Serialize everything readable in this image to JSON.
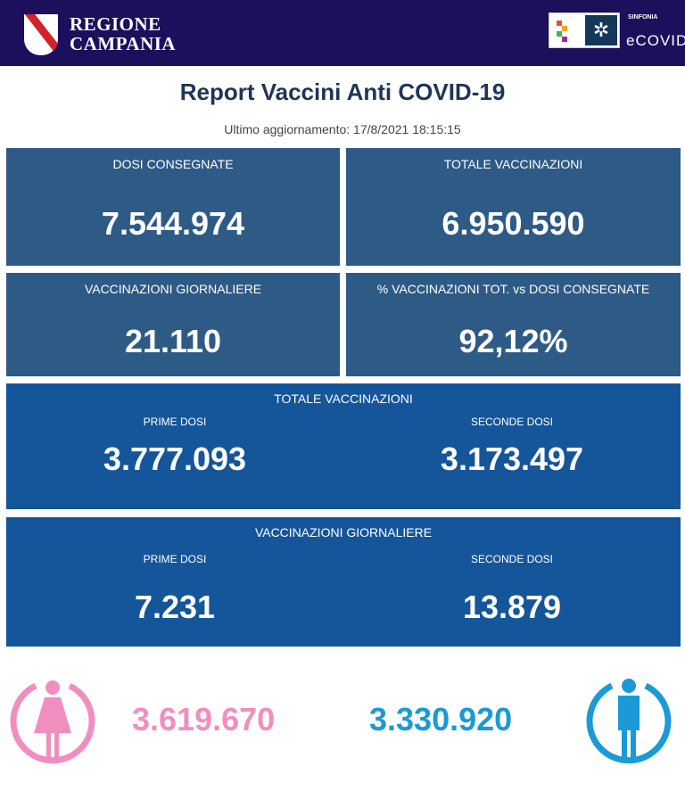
{
  "header": {
    "brand_line1": "REGIONE",
    "brand_line2": "CAMPANIA",
    "partner_small": "SINFONIA",
    "partner_name": "eCOVID"
  },
  "title": "Report Vaccini Anti COVID-19",
  "updated": "Ultimo aggiornamento: 17/8/2021  18:15:15",
  "cards": [
    {
      "label": "DOSI  CONSEGNATE",
      "value": "7.544.974"
    },
    {
      "label": "TOTALE VACCINAZIONI",
      "value": "6.950.590"
    },
    {
      "label": "VACCINAZIONI GIORNALIERE",
      "value": "21.110"
    },
    {
      "label": "% VACCINAZIONI TOT. vs DOSI CONSEGNATE",
      "value": "92,12%"
    }
  ],
  "totale": {
    "label": "TOTALE VACCINAZIONI",
    "prime_label": "PRIME DOSI",
    "prime": "3.777.093",
    "seconde_label": "SECONDE DOSI",
    "seconde": "3.173.497"
  },
  "giornaliere": {
    "label": "VACCINAZIONI GIORNALIERE",
    "prime_label": "PRIME DOSI",
    "prime": "7.231",
    "seconde_label": "SECONDE DOSI",
    "seconde": "13.879"
  },
  "gender": {
    "female": "3.619.670",
    "male": "3.330.920",
    "female_color": "#f08fbf",
    "male_color": "#1a9ad6",
    "female_icon": "female-icon",
    "male_icon": "male-icon"
  }
}
